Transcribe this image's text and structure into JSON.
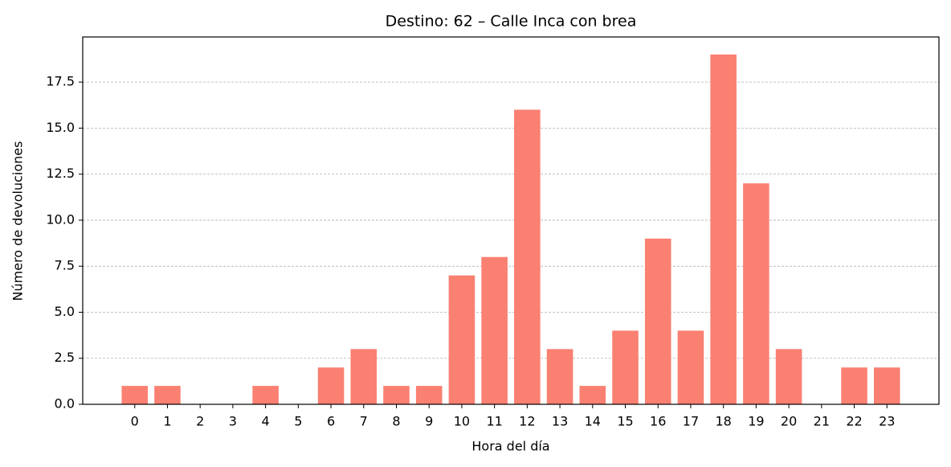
{
  "chart_data": {
    "type": "bar",
    "title": "Destino: 62 – Calle Inca con brea",
    "xlabel": "Hora del día",
    "ylabel": "Número de devoluciones",
    "categories": [
      "0",
      "1",
      "2",
      "3",
      "4",
      "5",
      "6",
      "7",
      "8",
      "9",
      "10",
      "11",
      "12",
      "13",
      "14",
      "15",
      "16",
      "17",
      "18",
      "19",
      "20",
      "21",
      "22",
      "23"
    ],
    "values": [
      1,
      1,
      0,
      0,
      1,
      0,
      2,
      3,
      1,
      1,
      7,
      8,
      16,
      3,
      1,
      4,
      9,
      4,
      19,
      12,
      3,
      0,
      2,
      2
    ],
    "color": "#fa8072",
    "ylim": [
      0,
      19.95
    ],
    "yticks": [
      {
        "value": 0,
        "label": "0.0"
      },
      {
        "value": 2.5,
        "label": "2.5"
      },
      {
        "value": 5,
        "label": "5.0"
      },
      {
        "value": 7.5,
        "label": "7.5"
      },
      {
        "value": 10,
        "label": "10.0"
      },
      {
        "value": 12.5,
        "label": "12.5"
      },
      {
        "value": 15,
        "label": "15.0"
      },
      {
        "value": 17.5,
        "label": "17.5"
      }
    ],
    "grid": true
  }
}
